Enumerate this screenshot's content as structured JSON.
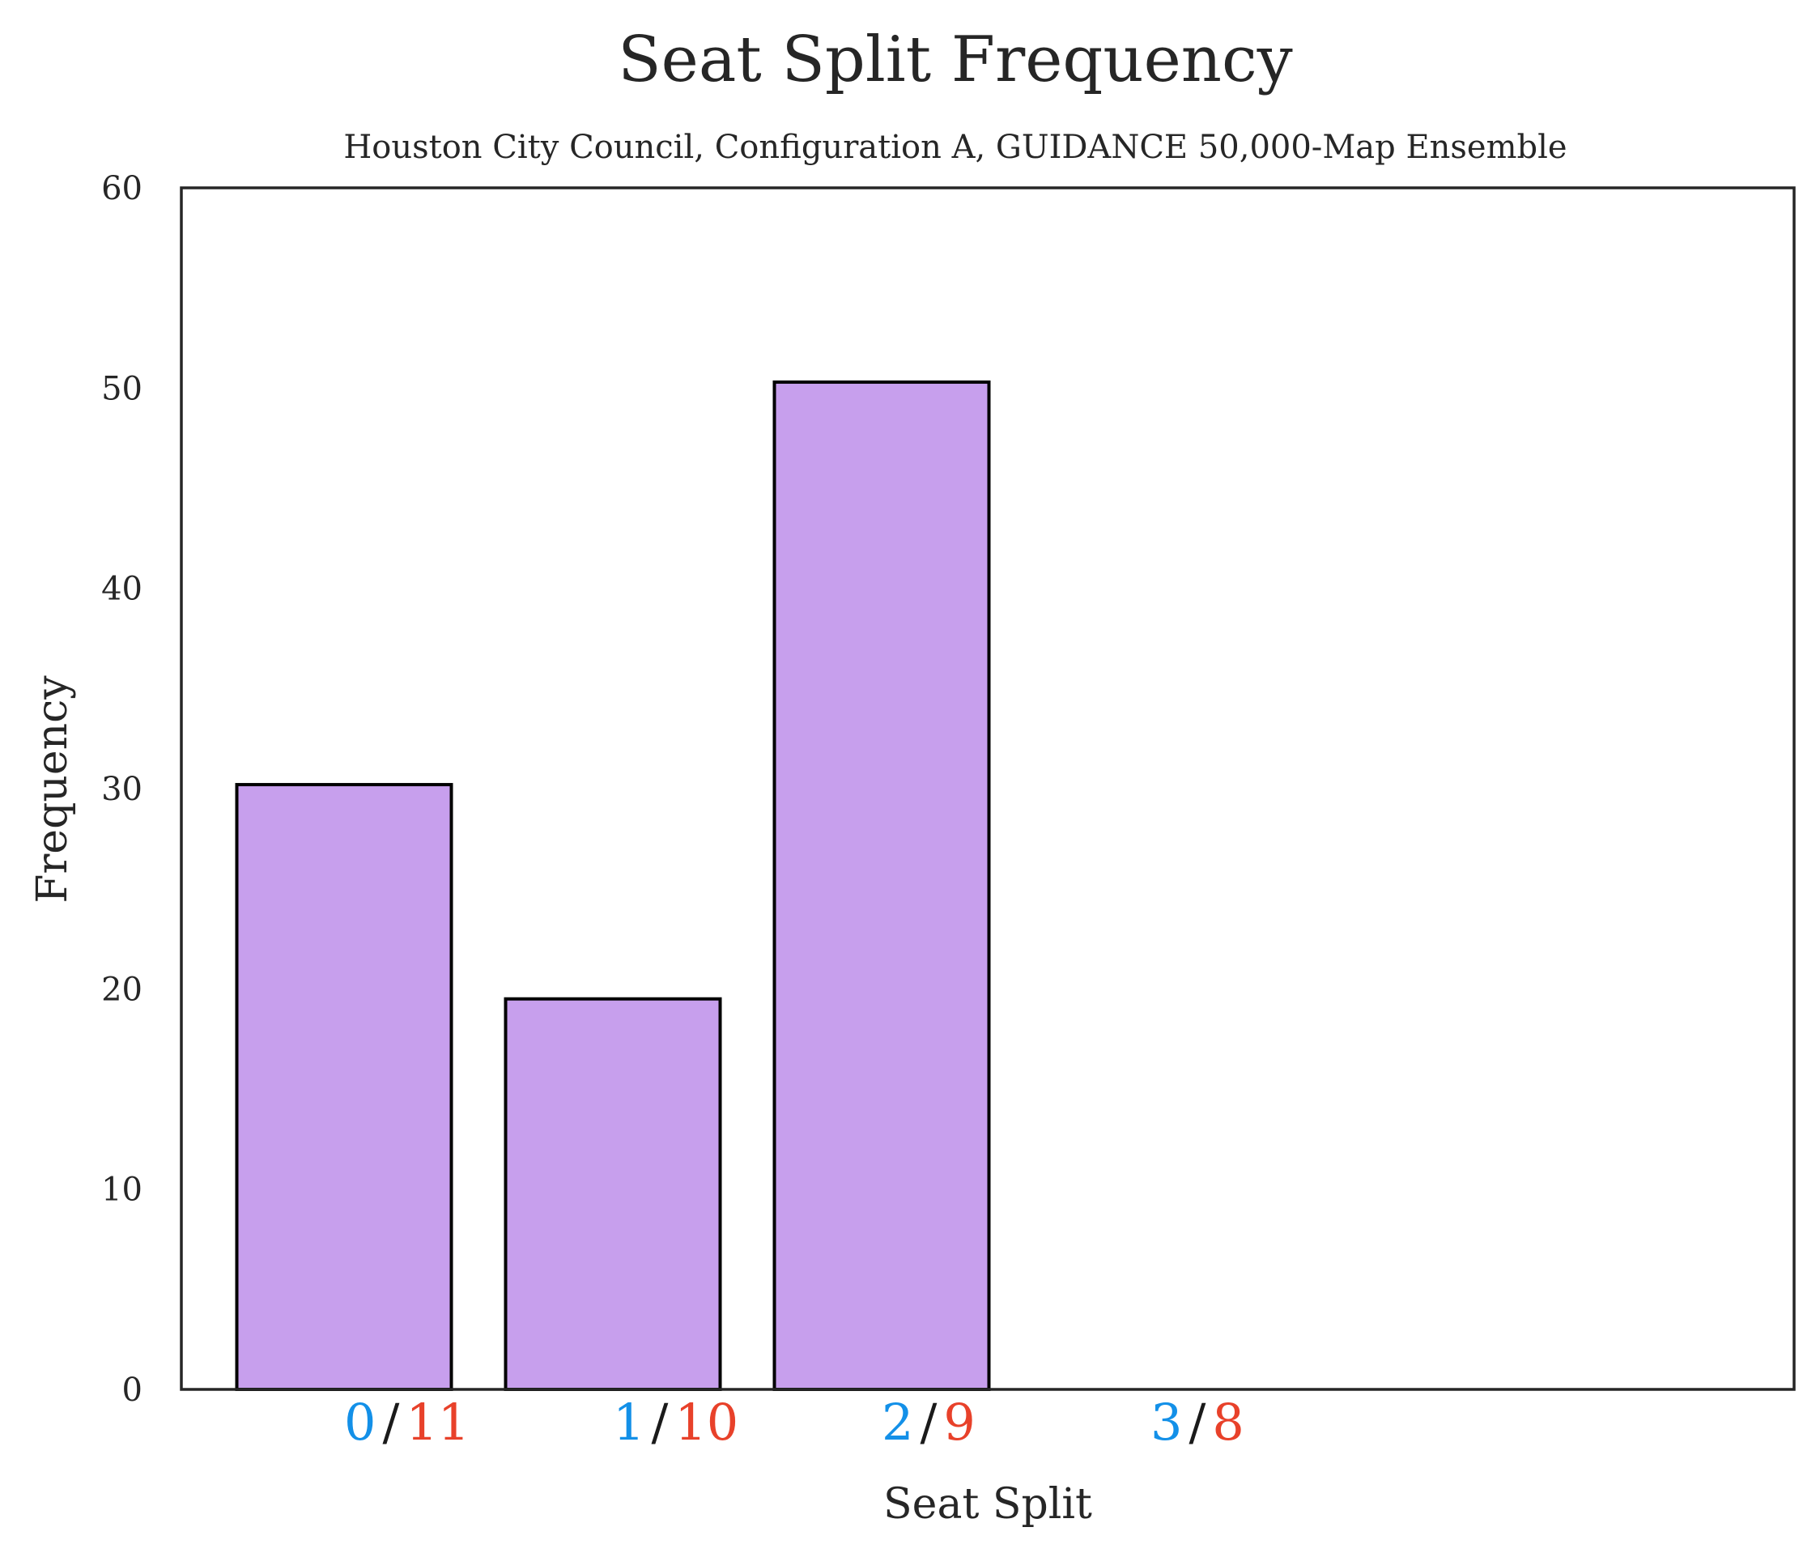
{
  "chart_data": {
    "type": "bar",
    "title": "Seat Split Frequency",
    "subtitle": "Houston City Council, Configuration A, GUIDANCE 50,000-Map Ensemble",
    "xlabel": "Seat Split",
    "ylabel": "Frequency",
    "ylim": [
      0,
      60
    ],
    "yticks": [
      "0",
      "10",
      "20",
      "30",
      "40",
      "50",
      "60"
    ],
    "categories": [
      {
        "left": "0",
        "sep": "/",
        "right": "11"
      },
      {
        "left": "1",
        "sep": "/",
        "right": "10"
      },
      {
        "left": "2",
        "sep": "/",
        "right": "9"
      },
      {
        "left": "3",
        "sep": "/",
        "right": "8"
      }
    ],
    "values": [
      30.2,
      19.5,
      50.3,
      0
    ],
    "colors": {
      "bar_fill": "#c79fed",
      "bar_edge": "#000000",
      "left_label": "#1390e8",
      "right_label": "#e8412a",
      "separator": "#1a1a1a",
      "axis": "#262626"
    },
    "grid": false
  }
}
